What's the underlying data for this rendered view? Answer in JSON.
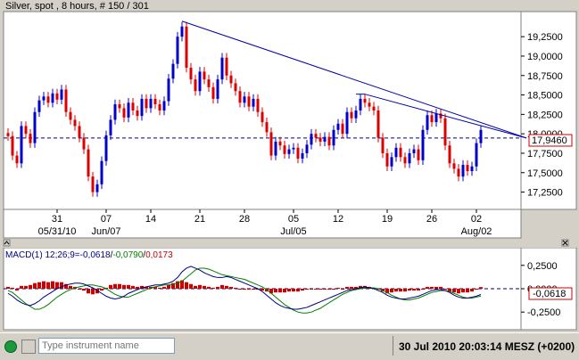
{
  "chart_title": "Silver, spot , 8 hours, # 150 / 301",
  "macd_label_prefix": "MACD(1) 12;26;9=",
  "macd_values": {
    "macd": "-0,0618",
    "signal": "-0,0790",
    "hist": "0,0173"
  },
  "macd_colors": {
    "macd": "#000080",
    "signal": "#008000",
    "hist": "#cc0000"
  },
  "last_price_label": "17,9460",
  "macd_last_label": "-0,0618",
  "x_ticks": [
    "31",
    "07",
    "14",
    "21",
    "28",
    "05",
    "12",
    "19",
    "26",
    "02"
  ],
  "x_month_labels": [
    "05/31/10",
    "Jun/07",
    "Jul/05",
    "Aug/02"
  ],
  "y_ticks_price": [
    "19,2500",
    "19,0000",
    "18,7500",
    "18,5000",
    "18,2500",
    "18,0000",
    "17,7500",
    "17,5000",
    "17,2500"
  ],
  "y_ticks_macd": [
    "0,2500",
    "0,0000",
    "-0,2500"
  ],
  "search": {
    "placeholder": "Type instrument name"
  },
  "status": {
    "datetime": "30 Jul 2010 20:03:14",
    "timezone": "MESZ (+0200)"
  },
  "colors": {
    "up": "#0000cc",
    "down": "#dd0000",
    "trendline": "#0000aa",
    "price_line": "#000080",
    "grid_bg": "#ffffff"
  },
  "chart_data": [
    {
      "type": "candlestick",
      "title": "Silver, spot , 8 hours, # 150 / 301",
      "ylim": [
        17.05,
        19.55
      ],
      "last_price": 17.946,
      "close": [
        17.97,
        17.72,
        17.62,
        18.1,
        18.0,
        17.88,
        18.28,
        18.43,
        18.48,
        18.4,
        18.52,
        18.44,
        18.57,
        18.28,
        18.18,
        18.1,
        17.95,
        17.8,
        17.45,
        17.25,
        17.35,
        17.65,
        17.98,
        18.18,
        18.38,
        18.33,
        18.21,
        18.4,
        18.3,
        18.23,
        18.45,
        18.33,
        18.45,
        18.38,
        18.3,
        18.42,
        18.71,
        18.9,
        19.25,
        19.38,
        18.85,
        18.7,
        18.55,
        18.8,
        18.7,
        18.6,
        18.45,
        18.7,
        18.98,
        18.75,
        18.65,
        18.55,
        18.4,
        18.48,
        18.35,
        18.45,
        18.28,
        18.15,
        18.02,
        17.72,
        17.9,
        17.85,
        17.74,
        17.8,
        17.82,
        17.68,
        17.75,
        17.86,
        18.0,
        17.95,
        17.9,
        17.96,
        17.85,
        18.05,
        18.13,
        18.0,
        18.28,
        18.2,
        18.3,
        18.45,
        18.4,
        18.35,
        18.3,
        17.95,
        17.75,
        17.58,
        17.7,
        17.82,
        17.7,
        17.62,
        17.75,
        17.8,
        17.66,
        18.05,
        18.24,
        18.15,
        18.26,
        18.2,
        17.85,
        17.62,
        17.55,
        17.45,
        17.6,
        17.52,
        17.58,
        17.88,
        18.05
      ]
    },
    {
      "type": "macd",
      "params": "12;26;9",
      "ylim": [
        -0.42,
        0.42
      ],
      "histogram": [
        0.02,
        0.01,
        -0.02,
        0.03,
        0.03,
        0.04,
        0.06,
        0.07,
        0.08,
        0.07,
        0.08,
        0.07,
        0.07,
        0.05,
        0.03,
        0.02,
        0.0,
        -0.02,
        -0.05,
        -0.06,
        -0.05,
        -0.02,
        0.01,
        0.04,
        0.05,
        0.05,
        0.04,
        0.04,
        0.03,
        0.02,
        0.03,
        0.02,
        0.02,
        0.02,
        0.01,
        0.02,
        0.04,
        0.06,
        0.08,
        0.09,
        0.07,
        0.05,
        0.03,
        0.04,
        0.03,
        0.02,
        0.01,
        0.02,
        0.04,
        0.03,
        0.02,
        0.01,
        0.0,
        0.0,
        -0.01,
        0.0,
        -0.01,
        -0.02,
        -0.03,
        -0.05,
        -0.04,
        -0.04,
        -0.04,
        -0.03,
        -0.03,
        -0.03,
        -0.02,
        -0.01,
        0.0,
        0.0,
        0.0,
        0.0,
        -0.01,
        0.0,
        0.01,
        0.0,
        0.02,
        0.02,
        0.02,
        0.03,
        0.03,
        0.02,
        0.01,
        -0.01,
        -0.03,
        -0.05,
        -0.04,
        -0.03,
        -0.03,
        -0.03,
        -0.02,
        -0.02,
        -0.02,
        0.0,
        0.02,
        0.02,
        0.02,
        0.02,
        -0.01,
        -0.03,
        -0.04,
        -0.05,
        -0.04,
        -0.04,
        -0.03,
        -0.01,
        0.0173
      ],
      "macd": [
        -0.05,
        -0.08,
        -0.12,
        -0.15,
        -0.17,
        -0.18,
        -0.16,
        -0.13,
        -0.09,
        -0.06,
        -0.03,
        0.0,
        0.02,
        0.04,
        0.05,
        0.06,
        0.06,
        0.05,
        0.03,
        0.01,
        -0.02,
        -0.05,
        -0.08,
        -0.1,
        -0.11,
        -0.1,
        -0.08,
        -0.05,
        -0.03,
        -0.01,
        0.01,
        0.02,
        0.03,
        0.04,
        0.04,
        0.05,
        0.06,
        0.08,
        0.12,
        0.18,
        0.22,
        0.24,
        0.22,
        0.2,
        0.17,
        0.15,
        0.13,
        0.12,
        0.12,
        0.13,
        0.12,
        0.1,
        0.08,
        0.06,
        0.04,
        0.02,
        0.0,
        -0.03,
        -0.07,
        -0.11,
        -0.15,
        -0.18,
        -0.2,
        -0.21,
        -0.22,
        -0.22,
        -0.21,
        -0.2,
        -0.18,
        -0.16,
        -0.14,
        -0.12,
        -0.1,
        -0.08,
        -0.06,
        -0.04,
        -0.02,
        -0.01,
        0.0,
        0.01,
        0.02,
        0.01,
        0.0,
        -0.02,
        -0.04,
        -0.07,
        -0.09,
        -0.1,
        -0.11,
        -0.11,
        -0.1,
        -0.09,
        -0.08,
        -0.06,
        -0.04,
        -0.02,
        -0.01,
        -0.01,
        -0.02,
        -0.04,
        -0.07,
        -0.09,
        -0.1,
        -0.1,
        -0.09,
        -0.08,
        -0.0618
      ],
      "signal": [
        -0.02,
        -0.04,
        -0.08,
        -0.12,
        -0.16,
        -0.19,
        -0.22,
        -0.22,
        -0.2,
        -0.17,
        -0.13,
        -0.09,
        -0.06,
        -0.03,
        -0.01,
        0.01,
        0.02,
        0.03,
        0.04,
        0.04,
        0.03,
        0.02,
        0.0,
        -0.03,
        -0.06,
        -0.08,
        -0.09,
        -0.09,
        -0.07,
        -0.05,
        -0.03,
        -0.01,
        0.01,
        0.02,
        0.03,
        0.04,
        0.04,
        0.05,
        0.06,
        0.08,
        0.12,
        0.16,
        0.2,
        0.22,
        0.22,
        0.21,
        0.19,
        0.17,
        0.15,
        0.14,
        0.13,
        0.12,
        0.11,
        0.1,
        0.08,
        0.06,
        0.04,
        0.02,
        -0.01,
        -0.05,
        -0.09,
        -0.13,
        -0.17,
        -0.2,
        -0.23,
        -0.25,
        -0.26,
        -0.26,
        -0.25,
        -0.23,
        -0.21,
        -0.18,
        -0.15,
        -0.12,
        -0.09,
        -0.06,
        -0.04,
        -0.02,
        -0.01,
        0.0,
        0.01,
        0.01,
        0.01,
        0.0,
        -0.02,
        -0.04,
        -0.07,
        -0.09,
        -0.11,
        -0.12,
        -0.12,
        -0.11,
        -0.1,
        -0.08,
        -0.06,
        -0.04,
        -0.03,
        -0.02,
        -0.02,
        -0.03,
        -0.05,
        -0.07,
        -0.09,
        -0.1,
        -0.1,
        -0.09,
        -0.079
      ]
    }
  ]
}
